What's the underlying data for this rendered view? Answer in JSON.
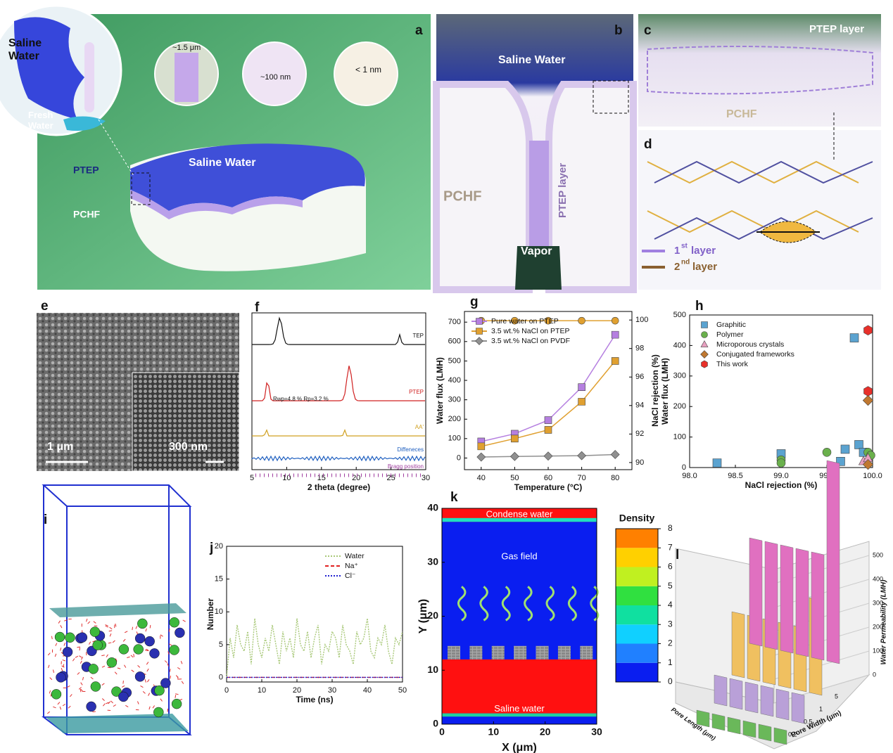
{
  "panels": {
    "a": {
      "label": "a",
      "inset_top": "Saline Water",
      "inset_bottom": "Fresh Water",
      "pore_1": "~1.5 μm",
      "pore_2": "~100 nm",
      "pore_3": "< 1 nm",
      "surface": "Saline Water",
      "layer_top": "PTEP",
      "layer_bottom": "PCHF"
    },
    "b": {
      "label": "b",
      "top": "Saline Water",
      "layer": "PTEP  layer",
      "substrate": "PCHF",
      "bottom": "Vapor"
    },
    "c": {
      "label": "c",
      "top": "PTEP  layer",
      "bottom": "PCHF"
    },
    "d": {
      "label": "d",
      "layer1": "1",
      "layer1_sup": "st",
      "layer1_text": "layer",
      "layer2": "2",
      "layer2_sup": "nd",
      "layer2_text": "layer"
    },
    "e": {
      "label": "e",
      "scale_1": "1 μm",
      "scale_2": "300 nm"
    },
    "i": {
      "label": "i"
    }
  },
  "chart_data": [
    {
      "type": "line",
      "panel": "g",
      "xlabel": "Temperature (°C)",
      "ylabel": "Water flux (LMH)",
      "y2label": "NaCl rejection (%)",
      "x": [
        40,
        50,
        60,
        70,
        80
      ],
      "xlim": [
        35,
        85
      ],
      "xticks": [
        40,
        50,
        60,
        70,
        80
      ],
      "ylim": [
        -60,
        755
      ],
      "yticks": [
        0,
        100,
        200,
        300,
        400,
        500,
        600,
        700
      ],
      "y2lim": [
        89.5,
        100.6
      ],
      "y2ticks": [
        90,
        92,
        94,
        96,
        98,
        100
      ],
      "legend": "upper left",
      "series": [
        {
          "name": "Pure water on PTEP",
          "color": "#b57fe0",
          "marker": "square",
          "values": [
            85,
            125,
            195,
            365,
            635
          ]
        },
        {
          "name": "3.5 wt.% NaCl on PTEP",
          "color": "#e0a030",
          "marker": "square",
          "values": [
            60,
            100,
            145,
            290,
            500
          ]
        },
        {
          "name": "3.5 wt.% NaCl on PVDF",
          "color": "#909090",
          "marker": "diamond",
          "values": [
            5,
            8,
            10,
            12,
            18
          ]
        },
        {
          "color": "#e0a030",
          "marker": "circle",
          "axis": "y2",
          "values": [
            99.95,
            99.95,
            99.95,
            99.95,
            99.95
          ]
        }
      ]
    },
    {
      "type": "scatter",
      "panel": "h",
      "xlabel": "NaCl rejection (%)",
      "ylabel": "Water flux (LMH)",
      "xlim": [
        98,
        100
      ],
      "xticks": [
        {
          "value": 98,
          "label": "98.0"
        },
        {
          "value": 98.5,
          "label": "98.5"
        },
        {
          "value": 99,
          "label": "99.0"
        },
        {
          "value": 99.5,
          "label": "99.5"
        },
        {
          "value": 100,
          "label": "100.0"
        }
      ],
      "ylim": [
        0,
        500
      ],
      "yticks": [
        0,
        100,
        200,
        300,
        400,
        500
      ],
      "legend": "upper left",
      "series": [
        {
          "name": "Graphitic",
          "color": "#5ba3d0",
          "marker": "square",
          "x": [
            98.3,
            99,
            99.8,
            99.7,
            99.85,
            99.65,
            99.9
          ],
          "values": [
            15,
            45,
            425,
            60,
            75,
            20,
            50
          ]
        },
        {
          "name": "Polymer",
          "color": "#6ab04c",
          "marker": "circle",
          "x": [
            99,
            99,
            99.5,
            99.95,
            99.98
          ],
          "values": [
            25,
            15,
            50,
            50,
            40
          ]
        },
        {
          "name": "Microporous crystals",
          "color": "#e8a0c0",
          "marker": "triangle",
          "x": [
            99.9,
            99.95
          ],
          "values": [
            20,
            30
          ]
        },
        {
          "name": "Conjugated frameworks",
          "color": "#c07830",
          "marker": "diamond",
          "x": [
            99.95,
            99.95
          ],
          "values": [
            220,
            10
          ]
        },
        {
          "name": "This work",
          "color": "#e8302a",
          "marker": "hexagon",
          "x": [
            99.95,
            99.95
          ],
          "values": [
            450,
            250
          ]
        }
      ]
    },
    {
      "type": "line",
      "panel": "j",
      "xlabel": "Time (ns)",
      "ylabel": "Number",
      "x": [
        0,
        1,
        2,
        3,
        4,
        5,
        6,
        7,
        8,
        9,
        10,
        11,
        12,
        13,
        14,
        15,
        16,
        17,
        18,
        19,
        20,
        21,
        22,
        23,
        24,
        25,
        26,
        27,
        28,
        29,
        30,
        31,
        32,
        33,
        34,
        35,
        36,
        37,
        38,
        39,
        40,
        41,
        42,
        43,
        44,
        45,
        46,
        47,
        48,
        49,
        50
      ],
      "xlim": [
        0,
        50
      ],
      "xticks": [
        0,
        10,
        20,
        30,
        40,
        50
      ],
      "ylim": [
        -0.7,
        20
      ],
      "yticks": [
        0,
        5,
        10,
        15,
        20
      ],
      "legend": "upper right",
      "series": [
        {
          "name": "Water",
          "color": "#a8c878",
          "linestyle": "dotted",
          "values": [
            0,
            6,
            3,
            8,
            5,
            4,
            7,
            2,
            9,
            5,
            3,
            6,
            4,
            8,
            5,
            2,
            7,
            4,
            6,
            3,
            9,
            5,
            4,
            7,
            3,
            6,
            8,
            2,
            5,
            4,
            7,
            6,
            3,
            8,
            5,
            4,
            2,
            7,
            5,
            6,
            9,
            4,
            3,
            6,
            5,
            8,
            4,
            2,
            6,
            5,
            7
          ]
        },
        {
          "name": "Na⁺",
          "color": "#e02020",
          "linestyle": "dashed",
          "values": [
            0,
            0,
            0,
            0,
            0,
            0,
            0,
            0,
            0,
            0,
            0,
            0,
            0,
            0,
            0,
            0,
            0,
            0,
            0,
            0,
            0,
            0,
            0,
            0,
            0,
            0,
            0,
            0,
            0,
            0,
            0,
            0,
            0,
            0,
            0,
            0,
            0,
            0,
            0,
            0,
            0,
            0,
            0,
            0,
            0,
            0,
            0,
            0,
            0,
            0,
            0
          ]
        },
        {
          "name": "Cl⁻",
          "color": "#2020d0",
          "linestyle": "dotted",
          "values": [
            0,
            0,
            0,
            0,
            0,
            0,
            0,
            0,
            0,
            0,
            0,
            0,
            0,
            0,
            0,
            0,
            0,
            0,
            0,
            0,
            0,
            0,
            0,
            0,
            0,
            0,
            0,
            0,
            0,
            0,
            0,
            0,
            0,
            0,
            0,
            0,
            0,
            0,
            0,
            0,
            0,
            0,
            0,
            0,
            0,
            0,
            0,
            0,
            0,
            0,
            0
          ]
        }
      ]
    },
    {
      "type": "xrd",
      "panel": "f",
      "xlabel": "2 theta (degree)",
      "xlim": [
        5,
        30
      ],
      "xticks": [
        5,
        10,
        15,
        20,
        25,
        30
      ],
      "traces": [
        "TEP",
        "PTEP",
        "AA'",
        "Diffeneces",
        "Bragg position"
      ],
      "fit_note": "Rwp=4.8 %  Rp=3.2 %"
    },
    {
      "type": "heatmap",
      "panel": "k",
      "xlabel": "X (μm)",
      "ylabel": "Y (μm)",
      "xlim": [
        0,
        30
      ],
      "ylim": [
        0,
        40
      ],
      "xticks": [
        0,
        10,
        20,
        30
      ],
      "yticks": [
        0,
        10,
        20,
        30,
        40
      ],
      "colorbar_title": "Density",
      "clim": [
        0,
        8
      ],
      "cticks": [
        0,
        1,
        2,
        3,
        4,
        5,
        6,
        7,
        8
      ],
      "annotations": [
        "Condense water",
        "Gas field",
        "Saline water"
      ]
    },
    {
      "type": "bar3d",
      "panel": "l",
      "zlabel": "Water Permeability (LMH)",
      "xlabel": "Pore Width (μm)",
      "ylabel": "Pore Length (μm)",
      "zlim": [
        0,
        500
      ],
      "zticks": [
        0,
        100,
        200,
        300,
        400,
        500
      ],
      "xtick_labels": [
        "0.2",
        "0.5",
        "1",
        "5"
      ]
    }
  ]
}
